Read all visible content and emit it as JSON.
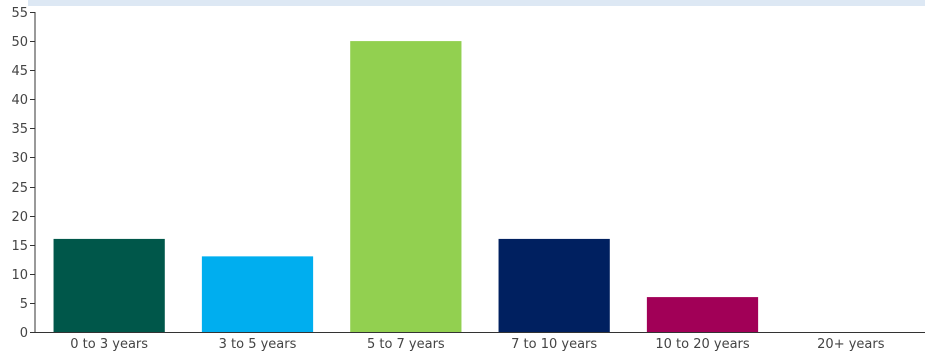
{
  "chart_data": {
    "type": "bar",
    "categories": [
      "0 to 3 years",
      "3 to 5 years",
      "5 to 7 years",
      "7 to 10 years",
      "10 to 20 years",
      "20+ years"
    ],
    "values": [
      16,
      13,
      50,
      16,
      6,
      0
    ],
    "colors": [
      "#00574a",
      "#00aeef",
      "#92d050",
      "#002060",
      "#a10057",
      "#cccccc"
    ],
    "ylim": [
      0,
      55
    ],
    "yticks": [
      0,
      5,
      10,
      15,
      20,
      25,
      30,
      35,
      40,
      45,
      50,
      55
    ],
    "grid": false,
    "legend": "none"
  }
}
